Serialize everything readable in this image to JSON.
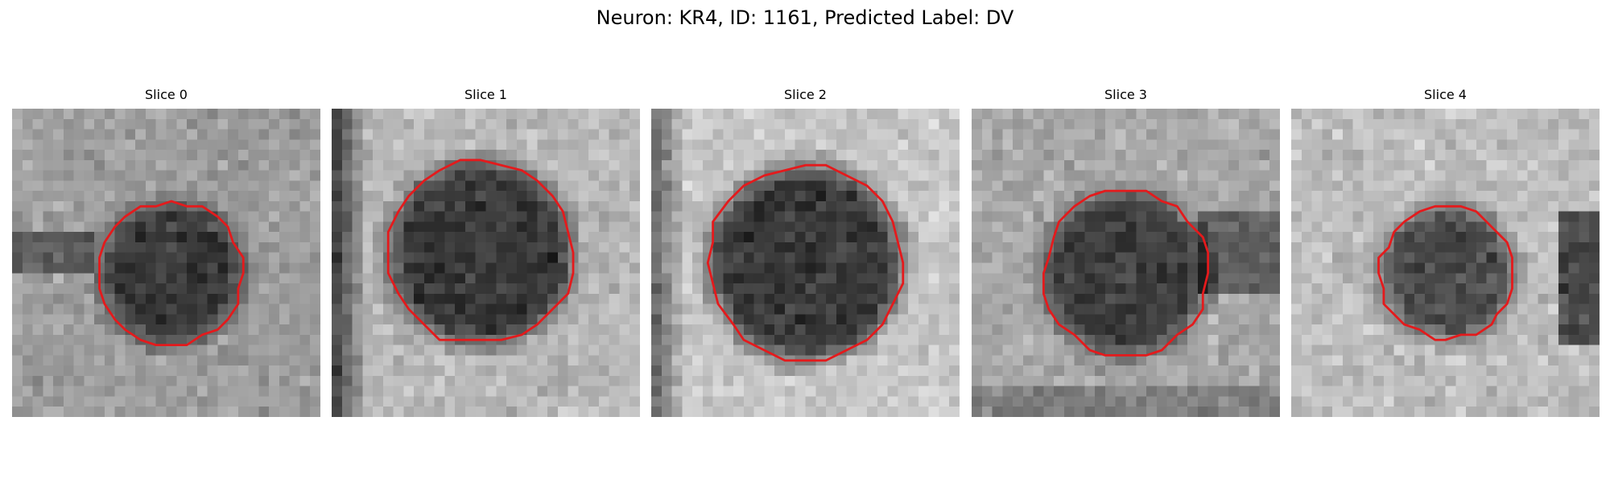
{
  "figure": {
    "title": "Neuron: KR4, ID: 1161, Predicted Label: DV",
    "colormap": "gray",
    "contour_color": "#e41a1c",
    "grid_size": 30
  },
  "slices": [
    {
      "title": "Slice 0",
      "center": [
        15.5,
        16.0
      ],
      "radius": 7.0,
      "brightness": 0.62,
      "darkness": 0.4,
      "features": [
        {
          "kind": "dark-band-left",
          "strength": 0.25
        }
      ]
    },
    {
      "title": "Slice 1",
      "center": [
        14.5,
        14.0
      ],
      "radius": 9.0,
      "brightness": 0.72,
      "darkness": 0.5,
      "features": [
        {
          "kind": "dark-column-left",
          "strength": 0.45
        }
      ]
    },
    {
      "title": "Slice 2",
      "center": [
        15.0,
        15.0
      ],
      "radius": 9.5,
      "brightness": 0.78,
      "darkness": 0.55,
      "features": [
        {
          "kind": "dark-column-left",
          "strength": 0.35
        }
      ]
    },
    {
      "title": "Slice 3",
      "center": [
        15.0,
        16.0
      ],
      "radius": 8.0,
      "brightness": 0.66,
      "darkness": 0.42,
      "features": [
        {
          "kind": "dark-spot-right",
          "strength": 0.35
        }
      ]
    },
    {
      "title": "Slice 4",
      "center": [
        15.2,
        16.0
      ],
      "radius": 6.5,
      "brightness": 0.74,
      "darkness": 0.45,
      "features": [
        {
          "kind": "dark-band-right",
          "strength": 0.45
        }
      ]
    }
  ]
}
